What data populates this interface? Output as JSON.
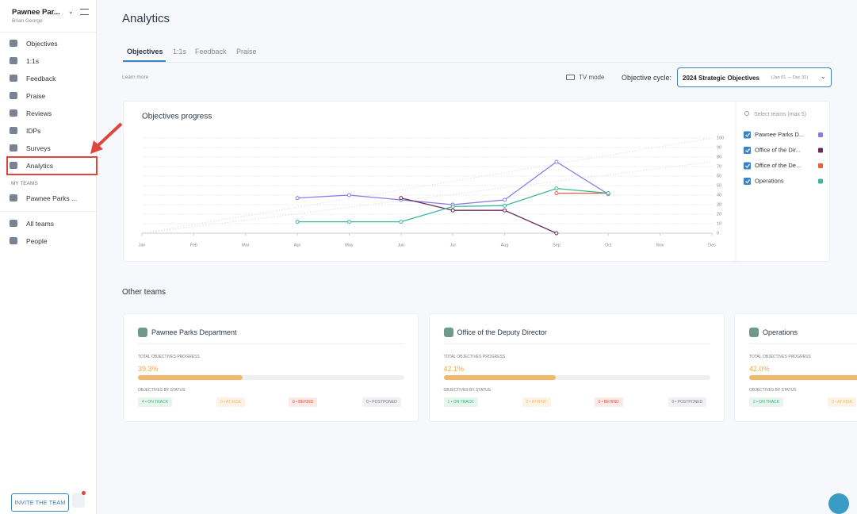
{
  "sidebar": {
    "org": "Pawnee Par...",
    "user": "Brian George",
    "nav": [
      "Objectives",
      "1:1s",
      "Feedback",
      "Praise",
      "Reviews",
      "IDPs",
      "Surveys",
      "Analytics"
    ],
    "my_teams_heading": "MY TEAMS",
    "my_teams": [
      "Pawnee Parks ..."
    ],
    "bottom_nav": [
      "All teams",
      "People"
    ],
    "invite_button": "INVITE THE TEAM"
  },
  "header": {
    "title": "Analytics",
    "tabs": [
      "Objectives",
      "1:1s",
      "Feedback",
      "Praise"
    ],
    "learn_more": "Learn more",
    "tv_mode": "TV mode",
    "cycle_label": "Objective cycle:",
    "cycle_value": "2024 Strategic Objectives",
    "cycle_dates": "(Jan 01 — Dec 31)"
  },
  "chart_data": {
    "type": "line",
    "title": "Objectives progress",
    "categories": [
      "Jan",
      "Feb",
      "Mar",
      "Apr",
      "May",
      "Jun",
      "Jul",
      "Aug",
      "Sep",
      "Oct",
      "Nov",
      "Dec"
    ],
    "ylim": [
      0,
      100
    ],
    "yticks": [
      0,
      10,
      20,
      30,
      40,
      50,
      60,
      70,
      80,
      90,
      100
    ],
    "grid": true,
    "series": [
      {
        "name": "Pawnee Parks D...",
        "color": "#8b7be8",
        "values": [
          null,
          null,
          null,
          37,
          40,
          35,
          30,
          35,
          75,
          41,
          null,
          null
        ]
      },
      {
        "name": "Office of the Dir...",
        "color": "#6b2a5e",
        "values": [
          null,
          null,
          null,
          null,
          null,
          37,
          24,
          24,
          0,
          null,
          null,
          null
        ]
      },
      {
        "name": "Office of the De...",
        "color": "#e8613c",
        "values": [
          null,
          null,
          null,
          null,
          null,
          null,
          null,
          null,
          42,
          42,
          null,
          null
        ]
      },
      {
        "name": "Operations",
        "color": "#3bb89a",
        "values": [
          null,
          null,
          null,
          12,
          12,
          12,
          28,
          29,
          47,
          42,
          null,
          null
        ]
      }
    ]
  },
  "team_selector": {
    "placeholder": "Select teams (max 5)"
  },
  "other_teams": {
    "heading": "Other teams",
    "progress_heading": "TOTAL OBJECTIVES PROGRESS",
    "status_heading": "OBJECTIVES BY STATUS",
    "teams": [
      {
        "name": "Pawnee Parks Department",
        "progress": {
          "value": 39.3,
          "label": "39.3%"
        },
        "statuses": [
          "4 • ON TRACK",
          "0 • AT RISK",
          "0 • BEHIND",
          "0 • POSTPONED"
        ]
      },
      {
        "name": "Office of the Deputy Director",
        "progress": {
          "value": 42.1,
          "label": "42.1%"
        },
        "statuses": [
          "1 • ON TRACK",
          "0 • AT RISK",
          "0 • BEHIND",
          "0 • POSTPONED"
        ]
      },
      {
        "name": "Operations",
        "progress": {
          "value": 42.0,
          "label": "42.0%"
        },
        "statuses": [
          "2 • ON TRACK",
          "0 • AT RISK"
        ]
      }
    ]
  }
}
